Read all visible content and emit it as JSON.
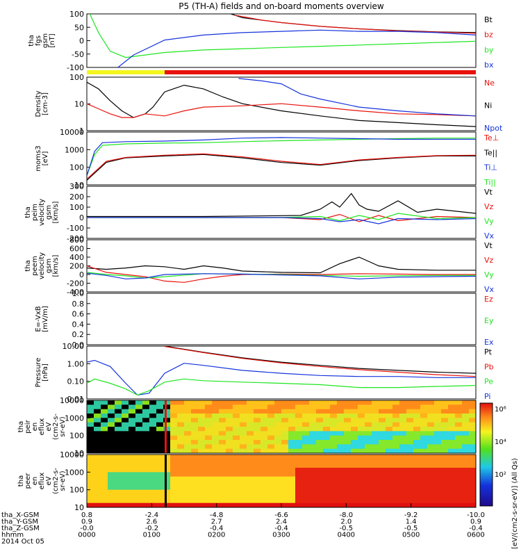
{
  "title": "P5 (TH-A) fields and on-board moments overview",
  "colors": {
    "black": "#000000",
    "red": "#e8120c",
    "green": "#1ee61e",
    "blue": "#1432dc",
    "yellow": "#f5f51e"
  },
  "chart_data": [
    {
      "id": "fgs",
      "type": "line",
      "ylabel": [
        "tha",
        "fgs",
        "gsm",
        "[nT]"
      ],
      "yticks": [
        "100",
        "50",
        "0",
        "-50",
        "-100"
      ],
      "ylim": [
        -110,
        105
      ],
      "legend": [
        {
          "name": "Bt",
          "color": "black"
        },
        {
          "name": "bz",
          "color": "red"
        },
        {
          "name": "by",
          "color": "green"
        },
        {
          "name": "bx",
          "color": "blue"
        }
      ],
      "series": [
        {
          "name": "Bt",
          "color": "black",
          "x": [
            0.33,
            0.4,
            0.5,
            0.6,
            0.7,
            0.8,
            0.9,
            1.0
          ],
          "y": [
            125,
            90,
            70,
            55,
            45,
            38,
            33,
            30
          ]
        },
        {
          "name": "bz",
          "color": "red",
          "x": [
            0.38,
            0.45,
            0.5,
            0.6,
            0.7,
            0.8,
            0.9,
            1.0
          ],
          "y": [
            100,
            80,
            70,
            55,
            45,
            37,
            32,
            27
          ]
        },
        {
          "name": "by",
          "color": "green",
          "x": [
            0.0,
            0.03,
            0.06,
            0.1,
            0.15,
            0.2,
            0.3,
            0.4,
            0.5,
            0.6,
            0.7,
            0.8,
            0.9,
            1.0
          ],
          "y": [
            130,
            30,
            -45,
            -70,
            -60,
            -50,
            -40,
            -35,
            -30,
            -25,
            -20,
            -15,
            -10,
            -5
          ]
        },
        {
          "name": "bx",
          "color": "blue",
          "x": [
            0.08,
            0.12,
            0.2,
            0.3,
            0.4,
            0.5,
            0.6,
            0.7,
            0.8,
            0.9,
            1.0
          ],
          "y": [
            -110,
            -60,
            0,
            20,
            30,
            35,
            40,
            35,
            35,
            30,
            20
          ]
        }
      ]
    },
    {
      "id": "density",
      "type": "line",
      "ylabel": [
        "Density",
        "[cm-3]"
      ],
      "yticks": [
        "100",
        "10",
        "1"
      ],
      "log": true,
      "ylim": [
        0.2,
        300
      ],
      "legend": [
        {
          "name": "Ne",
          "color": "red"
        },
        {
          "name": "Ni",
          "color": "black"
        },
        {
          "name": "Npot",
          "color": "blue"
        }
      ],
      "series": [
        {
          "name": "Ni",
          "color": "black",
          "x": [
            0.0,
            0.03,
            0.06,
            0.09,
            0.12,
            0.15,
            0.17,
            0.2,
            0.25,
            0.3,
            0.35,
            0.4,
            0.5,
            0.6,
            0.7,
            0.8,
            0.9,
            1.0
          ],
          "y": [
            150,
            60,
            12,
            3,
            1.2,
            2,
            5,
            40,
            100,
            60,
            20,
            8,
            3,
            1.5,
            0.8,
            0.6,
            0.45,
            0.35
          ]
        },
        {
          "name": "Ne",
          "color": "red",
          "x": [
            0.0,
            0.03,
            0.06,
            0.09,
            0.12,
            0.15,
            0.2,
            0.25,
            0.3,
            0.4,
            0.5,
            0.6,
            0.7,
            0.8,
            0.9,
            1.0
          ],
          "y": [
            8,
            4,
            2,
            1.2,
            1.2,
            2,
            1.5,
            3,
            5,
            6,
            8,
            5,
            3,
            2,
            1.8,
            1.5
          ]
        },
        {
          "name": "Npot",
          "color": "blue",
          "x": [
            0.39,
            0.45,
            0.5,
            0.55,
            0.6,
            0.7,
            0.8,
            0.9,
            1.0
          ],
          "y": [
            250,
            180,
            120,
            30,
            15,
            5,
            3,
            2,
            1.5
          ]
        }
      ]
    },
    {
      "id": "temp",
      "type": "line",
      "ylabel": [
        "moms3",
        "[eV]"
      ],
      "yticks": [
        "10000",
        "1000",
        "100",
        "10"
      ],
      "log": true,
      "ylim": [
        5,
        15000
      ],
      "legend": [
        {
          "name": "Te⊥",
          "color": "red"
        },
        {
          "name": "Te||",
          "color": "black"
        },
        {
          "name": "Ti⊥",
          "color": "blue"
        },
        {
          "name": "Ti||",
          "color": "green"
        }
      ],
      "series": [
        {
          "name": "Ti||",
          "color": "green",
          "x": [
            0.0,
            0.02,
            0.04,
            0.1,
            0.2,
            0.3,
            0.4,
            0.5,
            0.6,
            0.7,
            0.8,
            0.9,
            1.0
          ],
          "y": [
            20,
            500,
            2000,
            2500,
            2800,
            3000,
            3500,
            4000,
            4500,
            5000,
            5500,
            6000,
            6000
          ]
        },
        {
          "name": "Ti⊥",
          "color": "blue",
          "x": [
            0.0,
            0.02,
            0.04,
            0.1,
            0.2,
            0.3,
            0.4,
            0.5,
            0.6,
            0.7,
            0.8,
            0.9,
            1.0
          ],
          "y": [
            20,
            800,
            3000,
            3500,
            3800,
            4500,
            6000,
            6500,
            6000,
            5500,
            5000,
            5000,
            5000
          ]
        },
        {
          "name": "Te||",
          "color": "black",
          "x": [
            0.0,
            0.05,
            0.1,
            0.2,
            0.3,
            0.4,
            0.5,
            0.6,
            0.7,
            0.8,
            0.9,
            1.0
          ],
          "y": [
            10,
            150,
            300,
            400,
            500,
            300,
            150,
            100,
            200,
            300,
            400,
            400
          ]
        },
        {
          "name": "Te⊥",
          "color": "red",
          "x": [
            0.0,
            0.05,
            0.1,
            0.2,
            0.3,
            0.4,
            0.5,
            0.6,
            0.7,
            0.8,
            0.9,
            1.0
          ],
          "y": [
            12,
            180,
            320,
            450,
            550,
            350,
            180,
            110,
            220,
            320,
            420,
            450
          ]
        }
      ]
    },
    {
      "id": "peim",
      "type": "line",
      "ylabel": [
        "tha",
        "peim",
        "velocity",
        "gsm",
        "[km/s]"
      ],
      "yticks": [
        "300",
        "200",
        "100",
        "0",
        "-100",
        "-200"
      ],
      "ylim": [
        -200,
        300
      ],
      "legend": [
        {
          "name": "Vt",
          "color": "black"
        },
        {
          "name": "Vz",
          "color": "red"
        },
        {
          "name": "Vy",
          "color": "green"
        },
        {
          "name": "Vx",
          "color": "blue"
        }
      ],
      "series": [
        {
          "name": "Vt",
          "color": "black",
          "x": [
            0.0,
            0.3,
            0.55,
            0.6,
            0.63,
            0.65,
            0.68,
            0.7,
            0.72,
            0.75,
            0.8,
            0.85,
            0.9,
            1.0
          ],
          "y": [
            10,
            10,
            20,
            80,
            150,
            100,
            230,
            120,
            80,
            60,
            160,
            50,
            80,
            40
          ]
        },
        {
          "name": "Vz",
          "color": "red",
          "x": [
            0.0,
            0.5,
            0.6,
            0.65,
            0.7,
            0.75,
            0.8,
            0.9,
            1.0
          ],
          "y": [
            0,
            0,
            -20,
            30,
            -40,
            20,
            -30,
            10,
            0
          ]
        },
        {
          "name": "Vy",
          "color": "green",
          "x": [
            0.0,
            0.5,
            0.6,
            0.65,
            0.7,
            0.75,
            0.8,
            0.9,
            1.0
          ],
          "y": [
            0,
            0,
            10,
            -30,
            20,
            -20,
            40,
            -10,
            0
          ]
        },
        {
          "name": "Vx",
          "color": "blue",
          "x": [
            0.0,
            0.5,
            0.6,
            0.65,
            0.7,
            0.75,
            0.8,
            0.9,
            1.0
          ],
          "y": [
            0,
            0,
            -10,
            -40,
            -20,
            -60,
            -10,
            -20,
            -10
          ]
        }
      ]
    },
    {
      "id": "peem",
      "type": "line",
      "ylabel": [
        "tha",
        "peem",
        "velocity",
        "gsm",
        "[km/s]"
      ],
      "yticks": [
        "800",
        "600",
        "400",
        "200",
        "0",
        "-200",
        "-400"
      ],
      "ylim": [
        -400,
        800
      ],
      "legend": [
        {
          "name": "Vt",
          "color": "black"
        },
        {
          "name": "Vz",
          "color": "red"
        },
        {
          "name": "Vy",
          "color": "green"
        },
        {
          "name": "Vx",
          "color": "blue"
        }
      ],
      "series": [
        {
          "name": "Vt",
          "color": "black",
          "x": [
            0.0,
            0.05,
            0.1,
            0.15,
            0.2,
            0.25,
            0.3,
            0.35,
            0.4,
            0.5,
            0.6,
            0.65,
            0.7,
            0.75,
            0.8,
            0.9,
            1.0
          ],
          "y": [
            150,
            120,
            150,
            200,
            180,
            120,
            200,
            150,
            80,
            50,
            40,
            250,
            400,
            200,
            120,
            100,
            100
          ]
        },
        {
          "name": "Vz",
          "color": "red",
          "x": [
            0.0,
            0.05,
            0.1,
            0.15,
            0.2,
            0.25,
            0.3,
            0.35,
            0.4,
            0.5,
            0.6,
            0.7,
            0.8,
            0.9,
            1.0
          ],
          "y": [
            200,
            50,
            0,
            -50,
            -150,
            -180,
            -100,
            -40,
            0,
            10,
            0,
            20,
            10,
            0,
            0
          ]
        },
        {
          "name": "Vy",
          "color": "green",
          "x": [
            0.0,
            0.05,
            0.1,
            0.15,
            0.2,
            0.3,
            0.4,
            0.5,
            0.6,
            0.7,
            0.8,
            0.9,
            1.0
          ],
          "y": [
            50,
            0,
            -30,
            -80,
            -50,
            20,
            10,
            0,
            -20,
            -40,
            -30,
            -20,
            -20
          ]
        },
        {
          "name": "Vx",
          "color": "blue",
          "x": [
            0.0,
            0.05,
            0.1,
            0.15,
            0.2,
            0.3,
            0.4,
            0.5,
            0.6,
            0.7,
            0.8,
            0.9,
            1.0
          ],
          "y": [
            30,
            -20,
            -100,
            -80,
            0,
            20,
            10,
            -10,
            -30,
            -100,
            -60,
            -50,
            -40
          ]
        }
      ]
    },
    {
      "id": "efield",
      "type": "line",
      "ylabel": [
        "E=-VxB",
        "[mV/m]"
      ],
      "yticks": [
        "1.0",
        "0.8",
        "0.6",
        "0.4",
        "0.2",
        "0.0"
      ],
      "ylim": [
        0,
        1
      ],
      "legend": [
        {
          "name": "Ez",
          "color": "red"
        },
        {
          "name": "Ey",
          "color": "green"
        },
        {
          "name": "Ex",
          "color": "blue"
        }
      ],
      "series": []
    },
    {
      "id": "pressure",
      "type": "line",
      "ylabel": [
        "Pressure",
        "[nPa]"
      ],
      "yticks": [
        "10.00",
        "1.00",
        "0.10",
        "0.01"
      ],
      "log": true,
      "ylim": [
        0.008,
        40
      ],
      "legend": [
        {
          "name": "Pt",
          "color": "black"
        },
        {
          "name": "Pb",
          "color": "red"
        },
        {
          "name": "Pe",
          "color": "green"
        },
        {
          "name": "Pi",
          "color": "blue"
        }
      ],
      "series": [
        {
          "name": "Pt",
          "color": "black",
          "x": [
            0.2,
            0.3,
            0.4,
            0.5,
            0.6,
            0.7,
            0.8,
            0.9,
            1.0
          ],
          "y": [
            40,
            15,
            6,
            3,
            1.8,
            1.1,
            0.8,
            0.6,
            0.5
          ]
        },
        {
          "name": "Pb",
          "color": "red",
          "x": [
            0.2,
            0.3,
            0.4,
            0.5,
            0.6,
            0.7,
            0.8,
            0.9,
            1.0
          ],
          "y": [
            38,
            14,
            5.5,
            2.7,
            1.5,
            0.9,
            0.6,
            0.4,
            0.3
          ]
        },
        {
          "name": "Pi",
          "color": "blue",
          "x": [
            0.0,
            0.02,
            0.06,
            0.1,
            0.13,
            0.16,
            0.2,
            0.25,
            0.3,
            0.4,
            0.5,
            0.6,
            0.7,
            0.8,
            0.9,
            1.0
          ],
          "y": [
            3,
            4,
            1.5,
            0.1,
            0.015,
            0.02,
            0.5,
            2.5,
            1.8,
            0.8,
            0.5,
            0.35,
            0.3,
            0.3,
            0.25,
            0.25
          ]
        },
        {
          "name": "Pe",
          "color": "green",
          "x": [
            0.0,
            0.02,
            0.06,
            0.1,
            0.13,
            0.16,
            0.2,
            0.25,
            0.3,
            0.4,
            0.5,
            0.6,
            0.7,
            0.8,
            0.9,
            1.0
          ],
          "y": [
            0.1,
            0.2,
            0.1,
            0.04,
            0.015,
            0.03,
            0.12,
            0.2,
            0.15,
            0.12,
            0.1,
            0.08,
            0.05,
            0.05,
            0.06,
            0.07
          ]
        }
      ]
    },
    {
      "id": "peir",
      "type": "heatmap",
      "ylabel": [
        "tha",
        "peir",
        "en",
        "eflux",
        "eV",
        "(cm2-s-",
        "sr-eV)"
      ],
      "yticks": [
        "10000",
        "1000",
        "100",
        "10"
      ]
    },
    {
      "id": "peer",
      "type": "heatmap",
      "ylabel": [
        "tha",
        "peer",
        "en",
        "eflux",
        "eV",
        "(cm2-s-",
        "sr-eV)"
      ],
      "yticks": [
        "10000",
        "1000",
        "100",
        "10"
      ]
    }
  ],
  "colorbar": {
    "label": "[eV/(cm2-s-sr-eV)] (All Qs)",
    "ticks": [
      "10⁶",
      "10⁴",
      "10²"
    ]
  },
  "xaxis": {
    "row_labels": [
      "tha_X-GSM",
      "tha_Y-GSM",
      "tha_Z-GSM",
      "hhmm",
      "2014 Oct 05"
    ],
    "columns": [
      [
        "0.8",
        "0.9",
        "-0.0",
        "0000"
      ],
      [
        "-2.4",
        "2.6",
        "-0.2",
        "0100"
      ],
      [
        "-4.8",
        "2.7",
        "-0.4",
        "0200"
      ],
      [
        "-6.6",
        "2.4",
        "-0.4",
        "0300"
      ],
      [
        "-8.0",
        "2.0",
        "-0.5",
        "0400"
      ],
      [
        "-9.2",
        "1.4",
        "-0.5",
        "0500"
      ],
      [
        "-10.0",
        "0.9",
        "-0.4",
        "0600"
      ]
    ]
  }
}
